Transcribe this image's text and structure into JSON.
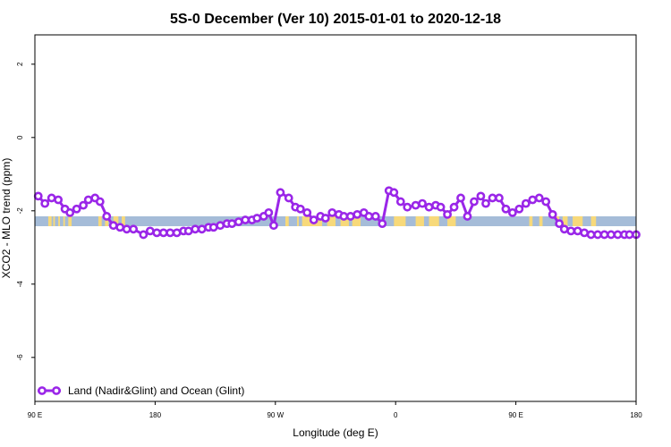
{
  "chart_data": {
    "type": "line",
    "title": "5S-0 December (Ver 10)   2015-01-01 to 2020-12-18",
    "xlabel": "Longitude (deg E)",
    "ylabel": "XCO2 - MLO trend (ppm)",
    "xlim": [
      90,
      450
    ],
    "ylim": [
      -7.2,
      2.8
    ],
    "x_ticks": [
      {
        "value": 90,
        "label": "90 E"
      },
      {
        "value": 162,
        "label": "180"
      },
      {
        "value": 234,
        "label": "90 W"
      },
      {
        "value": 306,
        "label": "0"
      },
      {
        "value": 378,
        "label": "90 E"
      },
      {
        "value": 450,
        "label": "180"
      }
    ],
    "y_ticks": [
      {
        "value": 2,
        "label": "2"
      },
      {
        "value": 0,
        "label": "0"
      },
      {
        "value": -2,
        "label": "-2"
      },
      {
        "value": -4,
        "label": "-4"
      },
      {
        "value": -6,
        "label": "-6"
      }
    ],
    "band": {
      "y_top": -2.15,
      "y_bottom": -2.42,
      "ocean_color": "#a5bcd8",
      "land_color": "#f7d97a",
      "land_segments": [
        [
          98,
          100
        ],
        [
          101,
          102
        ],
        [
          104,
          105
        ],
        [
          107,
          108
        ],
        [
          110,
          112
        ],
        [
          128,
          130
        ],
        [
          132,
          134
        ],
        [
          137,
          140
        ],
        [
          142,
          144
        ],
        [
          240,
          242
        ],
        [
          247,
          248
        ],
        [
          250,
          262
        ],
        [
          265,
          270
        ],
        [
          273,
          278
        ],
        [
          280,
          285
        ],
        [
          305,
          312
        ],
        [
          318,
          323
        ],
        [
          326,
          332
        ],
        [
          337,
          342
        ],
        [
          386,
          388
        ],
        [
          392,
          394
        ],
        [
          402,
          404
        ],
        [
          406,
          409
        ],
        [
          412,
          418
        ],
        [
          423,
          426
        ]
      ]
    },
    "series": [
      {
        "name": "Land (Nadir&Glint) and Ocean (Glint)",
        "color": "#9a26e8",
        "x": [
          92,
          96,
          100,
          104,
          108,
          111,
          115,
          119,
          122,
          126,
          129,
          133,
          137,
          141,
          145,
          149,
          155,
          159,
          163,
          167,
          171,
          175,
          179,
          182,
          186,
          190,
          194,
          197,
          201,
          205,
          208,
          212,
          216,
          220,
          223,
          227,
          230,
          233,
          237,
          242,
          246,
          249,
          253,
          257,
          261,
          264,
          268,
          272,
          275,
          279,
          283,
          287,
          290,
          294,
          298,
          302,
          305,
          309,
          313,
          318,
          322,
          326,
          330,
          333,
          337,
          341,
          345,
          349,
          353,
          357,
          360,
          364,
          368,
          372,
          376,
          380,
          384,
          388,
          392,
          396,
          400,
          404,
          407,
          411,
          415,
          419,
          423,
          427,
          431,
          435,
          439,
          443,
          446,
          450
        ],
        "y": [
          -1.6,
          -1.8,
          -1.65,
          -1.7,
          -1.95,
          -2.05,
          -1.95,
          -1.85,
          -1.7,
          -1.65,
          -1.75,
          -2.15,
          -2.4,
          -2.45,
          -2.5,
          -2.5,
          -2.65,
          -2.55,
          -2.6,
          -2.6,
          -2.6,
          -2.6,
          -2.55,
          -2.55,
          -2.5,
          -2.5,
          -2.45,
          -2.45,
          -2.4,
          -2.35,
          -2.35,
          -2.3,
          -2.25,
          -2.25,
          -2.2,
          -2.15,
          -2.05,
          -2.4,
          -1.5,
          -1.65,
          -1.9,
          -1.95,
          -2.05,
          -2.25,
          -2.15,
          -2.2,
          -2.05,
          -2.1,
          -2.15,
          -2.15,
          -2.1,
          -2.05,
          -2.15,
          -2.15,
          -2.35,
          -1.45,
          -1.5,
          -1.75,
          -1.9,
          -1.85,
          -1.8,
          -1.9,
          -1.85,
          -1.9,
          -2.1,
          -1.9,
          -1.65,
          -2.15,
          -1.75,
          -1.6,
          -1.8,
          -1.65,
          -1.65,
          -1.95,
          -2.05,
          -1.95,
          -1.8,
          -1.7,
          -1.65,
          -1.75,
          -2.1,
          -2.35,
          -2.5,
          -2.55,
          -2.55,
          -2.6,
          -2.65,
          -2.65,
          -2.65,
          -2.65,
          -2.65,
          -2.65,
          -2.65,
          -2.65
        ]
      }
    ],
    "legend": {
      "position": "bottom-left",
      "entries": [
        "Land (Nadir&Glint) and Ocean (Glint)"
      ]
    },
    "grid": false
  }
}
